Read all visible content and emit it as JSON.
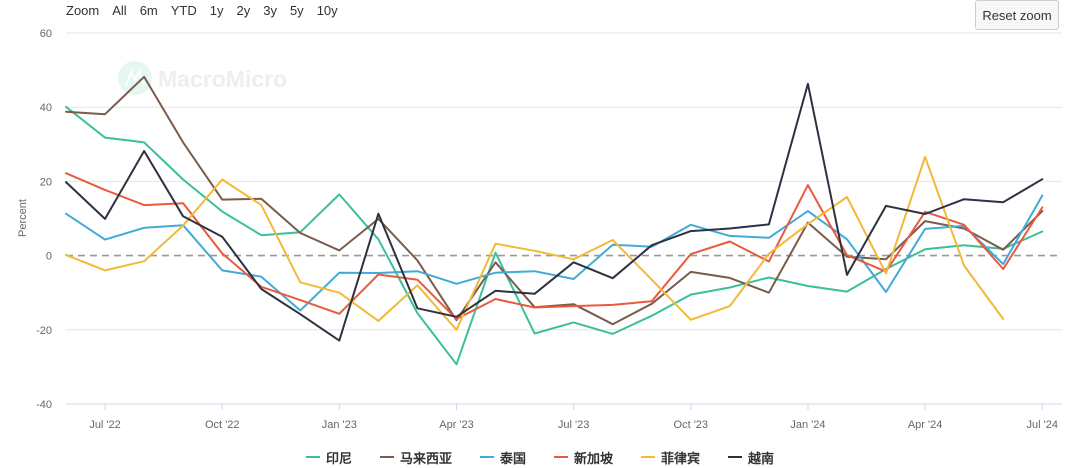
{
  "zoom": {
    "label": "Zoom",
    "options": [
      "All",
      "6m",
      "YTD",
      "1y",
      "2y",
      "3y",
      "5y",
      "10y"
    ]
  },
  "reset_zoom_label": "Reset zoom",
  "watermark": "MacroMicro",
  "chart_data": {
    "type": "line",
    "ylabel": "Percent",
    "ylim": [
      -40,
      60
    ],
    "yticks": [
      -40,
      -20,
      0,
      20,
      40,
      60
    ],
    "reference_line": 0,
    "x": [
      "2022-06",
      "2022-07",
      "2022-08",
      "2022-09",
      "2022-10",
      "2022-11",
      "2022-12",
      "2023-01",
      "2023-02",
      "2023-03",
      "2023-04",
      "2023-05",
      "2023-06",
      "2023-07",
      "2023-08",
      "2023-09",
      "2023-10",
      "2023-11",
      "2023-12",
      "2024-01",
      "2024-02",
      "2024-03",
      "2024-04",
      "2024-05",
      "2024-06",
      "2024-07"
    ],
    "xticks": [
      {
        "date": "2022-07",
        "label": "Jul '22"
      },
      {
        "date": "2022-10",
        "label": "Oct '22"
      },
      {
        "date": "2023-01",
        "label": "Jan '23"
      },
      {
        "date": "2023-04",
        "label": "Apr '23"
      },
      {
        "date": "2023-07",
        "label": "Jul '23"
      },
      {
        "date": "2023-10",
        "label": "Oct '23"
      },
      {
        "date": "2024-01",
        "label": "Jan '24"
      },
      {
        "date": "2024-04",
        "label": "Apr '24"
      },
      {
        "date": "2024-07",
        "label": "Jul '24"
      }
    ],
    "legend_position": "bottom",
    "series": [
      {
        "name": "印尼",
        "color": "#3bbf9a",
        "values": [
          40.1,
          31.8,
          30.5,
          20.5,
          11.9,
          5.5,
          6.3,
          16.5,
          4.4,
          -15.5,
          -29.3,
          0.8,
          -21.0,
          -18.0,
          -21.1,
          -16.2,
          -10.5,
          -8.6,
          -5.9,
          -8.2,
          -9.7,
          -3.6,
          1.7,
          2.8,
          1.8,
          6.5
        ]
      },
      {
        "name": "马来西亚",
        "color": "#7b5b4b",
        "values": [
          38.8,
          38.1,
          48.2,
          30.5,
          15.1,
          15.3,
          6.1,
          1.4,
          9.9,
          -1.3,
          -17.4,
          -1.8,
          -13.9,
          -13.1,
          -18.5,
          -13.0,
          -4.4,
          -6.0,
          -10.0,
          8.9,
          -0.3,
          -1.0,
          9.3,
          7.3,
          1.6,
          12.0
        ]
      },
      {
        "name": "泰国",
        "color": "#43aad6",
        "values": [
          11.3,
          4.3,
          7.5,
          8.2,
          -4.0,
          -5.7,
          -14.8,
          -4.6,
          -4.7,
          -4.2,
          -7.6,
          -4.6,
          -4.2,
          -6.3,
          2.9,
          2.4,
          8.3,
          5.3,
          4.8,
          12.0,
          4.4,
          -9.8,
          7.2,
          8.0,
          -2.3,
          16.2
        ]
      },
      {
        "name": "新加坡",
        "color": "#ea5a3c",
        "values": [
          22.2,
          17.7,
          13.6,
          14.1,
          0.6,
          -8.4,
          -12.0,
          -15.7,
          -5.1,
          -6.5,
          -17.1,
          -11.7,
          -14.0,
          -13.6,
          -13.3,
          -12.3,
          0.4,
          3.8,
          -1.6,
          19.0,
          0.1,
          -4.3,
          11.8,
          8.3,
          -3.6,
          13.0
        ]
      },
      {
        "name": "菲律宾",
        "color": "#f2b939",
        "values": [
          0.2,
          -4.0,
          -1.5,
          8.1,
          20.5,
          13.6,
          -7.2,
          -10.0,
          -17.6,
          -8.0,
          -20.0,
          3.2,
          1.3,
          -1.0,
          4.2,
          -6.5,
          -17.3,
          -13.6,
          0.5,
          8.5,
          15.8,
          -4.8,
          26.6,
          -2.7,
          -17.1,
          null
        ]
      },
      {
        "name": "越南",
        "color": "#2e3142",
        "values": [
          19.8,
          9.9,
          28.2,
          10.6,
          5.1,
          -9.0,
          -15.8,
          -22.9,
          11.3,
          -14.2,
          -16.5,
          -9.5,
          -10.3,
          -1.8,
          -6.1,
          2.8,
          6.6,
          7.3,
          8.4,
          46.3,
          -5.2,
          13.4,
          11.2,
          15.2,
          14.4,
          20.6
        ]
      }
    ]
  }
}
